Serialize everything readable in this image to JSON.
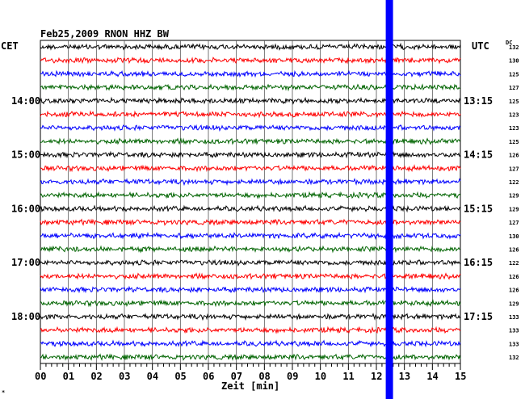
{
  "chart_data": {
    "type": "line",
    "title": "Feb25,2009   RNON HHZ BW",
    "left_zone_label": "CET",
    "right_zone_label": "UTC",
    "dc_label": "DC",
    "xlabel": "Zeit [min]",
    "xlim": [
      0,
      15
    ],
    "x_ticks": [
      "00",
      "01",
      "02",
      "03",
      "04",
      "05",
      "06",
      "07",
      "08",
      "09",
      "10",
      "11",
      "12",
      "13",
      "14",
      "15"
    ],
    "left_hour_labels": [
      {
        "trace": 4,
        "text": "14:00"
      },
      {
        "trace": 8,
        "text": "15:00"
      },
      {
        "trace": 12,
        "text": "16:00"
      },
      {
        "trace": 16,
        "text": "17:00"
      },
      {
        "trace": 20,
        "text": "18:00"
      }
    ],
    "right_hour_labels": [
      {
        "trace": 4,
        "text": "13:15"
      },
      {
        "trace": 8,
        "text": "14:15"
      },
      {
        "trace": 12,
        "text": "15:15"
      },
      {
        "trace": 16,
        "text": "16:15"
      },
      {
        "trace": 20,
        "text": "17:15"
      }
    ],
    "dc_values": [
      132,
      130,
      125,
      127,
      125,
      123,
      123,
      125,
      126,
      127,
      122,
      129,
      129,
      127,
      130,
      126,
      122,
      126,
      126,
      129,
      133,
      133,
      133,
      132
    ],
    "trace_colors": [
      "#000000",
      "#ff0000",
      "#0000ff",
      "#006400"
    ],
    "marker": {
      "x_min": 12.45,
      "color": "#0000ff"
    },
    "grid": true,
    "corner_mark": "*"
  }
}
